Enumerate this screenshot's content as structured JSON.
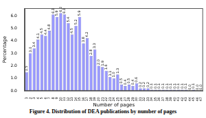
{
  "chart_data": {
    "type": "bar",
    "title": "Figure 4. Distribution of DEA publications by number of pages",
    "x_label": "Number of pages",
    "y_label": "Percentage",
    "categories": [
      "1",
      "2",
      "3",
      "4",
      "5",
      "6",
      "7",
      "8",
      "9",
      "10",
      "11",
      "12",
      "13",
      "14",
      "15",
      "16",
      "17",
      "18",
      "19",
      "20",
      "21",
      "22",
      "23",
      "24",
      "25",
      "26",
      "27",
      "28",
      "29",
      "30",
      "31",
      "32",
      "33",
      "34",
      "35",
      "36",
      "37",
      "38",
      "39",
      "40",
      "41",
      "42",
      "43",
      "44",
      "45",
      "46",
      "47"
    ],
    "values": [
      1.5,
      3.0,
      3.4,
      4.1,
      4.5,
      4.4,
      4.8,
      6.1,
      5.9,
      6.2,
      6.1,
      5.4,
      4.5,
      5.2,
      5.9,
      3.8,
      4.2,
      2.8,
      3.3,
      2.0,
      1.9,
      1.6,
      1.1,
      1.0,
      1.3,
      0.5,
      0.4,
      0.5,
      0.4,
      0.6,
      0.2,
      0.2,
      0.2,
      0.1,
      0.1,
      0.1,
      0.1,
      0.1,
      0.1,
      0.1,
      0.1,
      0.1,
      0.1,
      0.0,
      0.1,
      0.0,
      0.0
    ],
    "value_labels": [
      "1.5",
      "3.0",
      "3.4",
      "4.1",
      "4.5",
      "4.4",
      "4.8",
      "6.1",
      "5.9",
      "6.2",
      "6.1",
      "5.4",
      "4.5",
      "5.2",
      "5.9",
      "3.8",
      "4.2",
      "2.8",
      "3.3",
      "2.0",
      "1.9",
      "1.6",
      "1.1",
      "1.0",
      "1.3",
      "0.5",
      "0.4",
      "0.5",
      "0.4",
      "0.6",
      "0.2",
      "0.2",
      "0.2",
      "0.1",
      "0.1",
      "0.1",
      "0.1",
      "0.1",
      "0.1",
      "0.1",
      "0.1",
      "0.1",
      "0.1",
      "0.0",
      "0.1",
      "0.0",
      "0.0"
    ],
    "color": "#9999ff",
    "ylim": [
      0,
      6.6
    ],
    "yticks": [
      {
        "value": 0,
        "label": "0.0"
      },
      {
        "value": 1,
        "label": "1.0"
      },
      {
        "value": 2,
        "label": "2.0"
      },
      {
        "value": 3,
        "label": "3.0"
      },
      {
        "value": 4,
        "label": "4.0"
      },
      {
        "value": 5,
        "label": "5.0"
      },
      {
        "value": 6,
        "label": "6.0"
      }
    ],
    "grid": false,
    "data_labels": true
  }
}
